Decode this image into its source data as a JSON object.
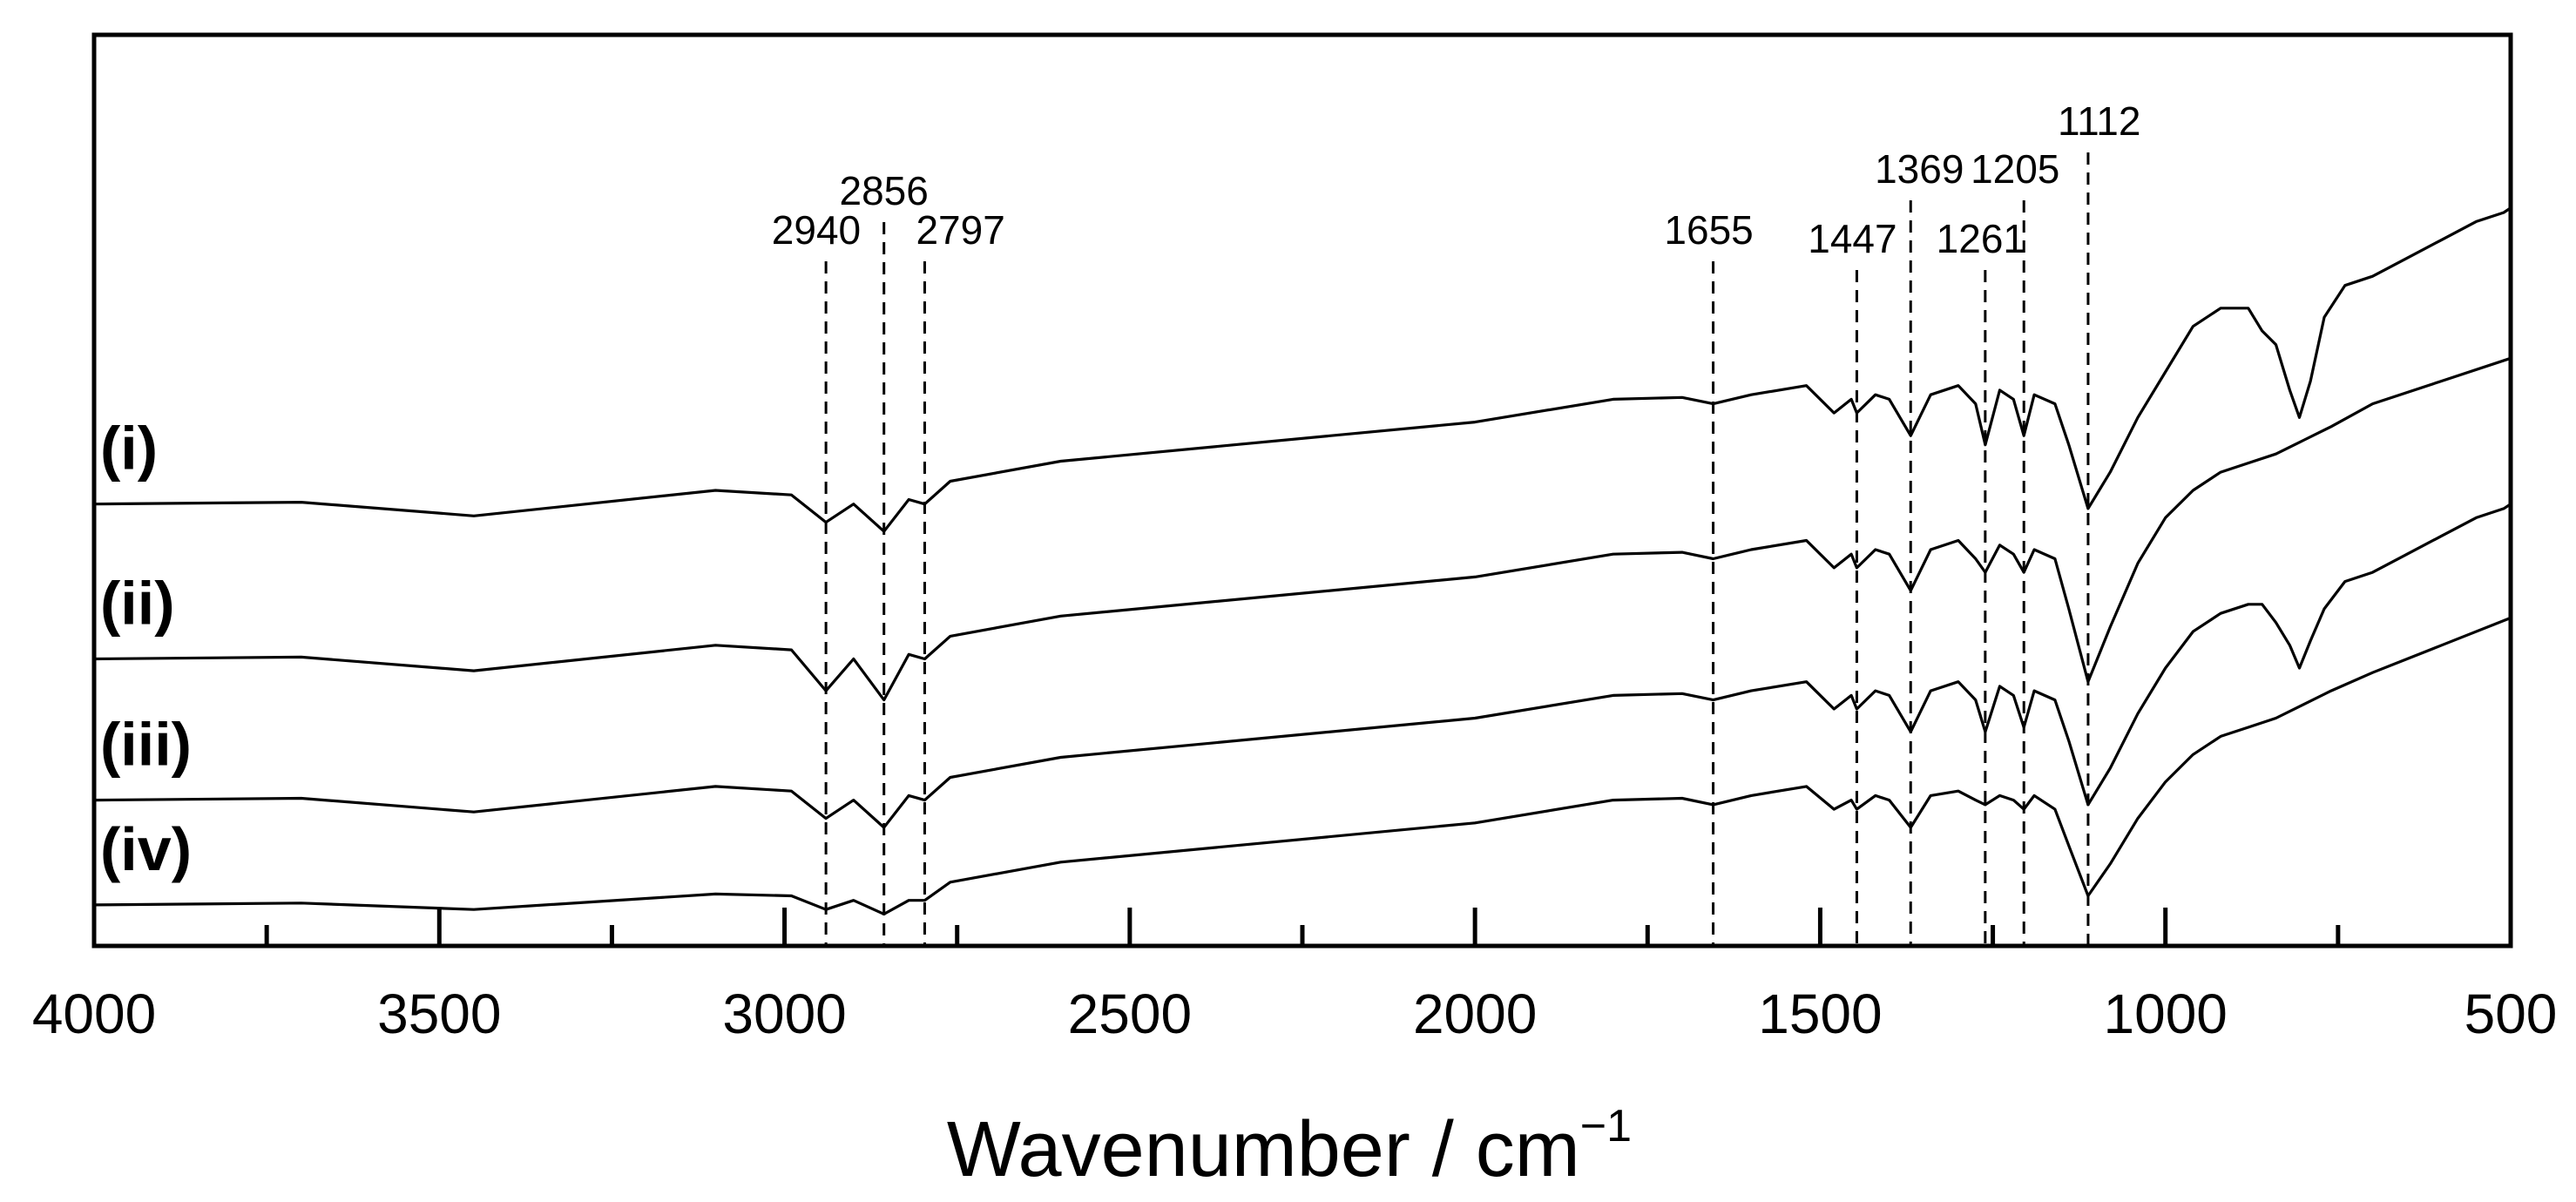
{
  "chart_data": {
    "type": "line",
    "title": "",
    "xlabel": "Wavenumber / cm",
    "xlabel_superscript": "−1",
    "ylabel": "",
    "xlim": [
      4000,
      500
    ],
    "x_reversed": true,
    "x_ticks_major": [
      "4000",
      "3500",
      "3000",
      "2500",
      "2000",
      "1500",
      "1000",
      "500"
    ],
    "x_ticks_minor": [
      3750,
      3250,
      2750,
      2250,
      1750,
      1250,
      750
    ],
    "y_ticks": [],
    "grid": false,
    "peak_markers": [
      {
        "wavenumber": 2940,
        "label": "2940"
      },
      {
        "wavenumber": 2856,
        "label": "2856"
      },
      {
        "wavenumber": 2797,
        "label": "2797"
      },
      {
        "wavenumber": 1655,
        "label": "1655"
      },
      {
        "wavenumber": 1447,
        "label": "1447"
      },
      {
        "wavenumber": 1369,
        "label": "1369"
      },
      {
        "wavenumber": 1261,
        "label": "1261"
      },
      {
        "wavenumber": 1205,
        "label": "1205"
      },
      {
        "wavenumber": 1112,
        "label": "1112"
      }
    ],
    "series": [
      {
        "name": "(i)",
        "offset": 0,
        "points": [
          [
            4000,
            0.515
          ],
          [
            3700,
            0.513
          ],
          [
            3450,
            0.528
          ],
          [
            3100,
            0.5
          ],
          [
            2990,
            0.505
          ],
          [
            2940,
            0.535
          ],
          [
            2900,
            0.515
          ],
          [
            2856,
            0.545
          ],
          [
            2820,
            0.51
          ],
          [
            2797,
            0.515
          ],
          [
            2760,
            0.49
          ],
          [
            2600,
            0.468
          ],
          [
            2000,
            0.425
          ],
          [
            1800,
            0.4
          ],
          [
            1700,
            0.398
          ],
          [
            1655,
            0.405
          ],
          [
            1600,
            0.395
          ],
          [
            1520,
            0.385
          ],
          [
            1480,
            0.415
          ],
          [
            1455,
            0.4
          ],
          [
            1447,
            0.415
          ],
          [
            1420,
            0.395
          ],
          [
            1400,
            0.4
          ],
          [
            1369,
            0.44
          ],
          [
            1340,
            0.395
          ],
          [
            1300,
            0.385
          ],
          [
            1275,
            0.405
          ],
          [
            1261,
            0.45
          ],
          [
            1240,
            0.39
          ],
          [
            1220,
            0.4
          ],
          [
            1205,
            0.44
          ],
          [
            1190,
            0.395
          ],
          [
            1160,
            0.405
          ],
          [
            1140,
            0.45
          ],
          [
            1112,
            0.52
          ],
          [
            1080,
            0.48
          ],
          [
            1040,
            0.42
          ],
          [
            1000,
            0.37
          ],
          [
            960,
            0.32
          ],
          [
            920,
            0.3
          ],
          [
            880,
            0.3
          ],
          [
            860,
            0.325
          ],
          [
            840,
            0.34
          ],
          [
            820,
            0.39
          ],
          [
            806,
            0.42
          ],
          [
            790,
            0.38
          ],
          [
            770,
            0.31
          ],
          [
            740,
            0.275
          ],
          [
            700,
            0.265
          ],
          [
            650,
            0.245
          ],
          [
            600,
            0.225
          ],
          [
            550,
            0.205
          ],
          [
            510,
            0.195
          ],
          [
            500,
            0.19
          ]
        ]
      },
      {
        "name": "(ii)",
        "offset": 0.17,
        "points": [
          [
            4000,
            0.515
          ],
          [
            3700,
            0.513
          ],
          [
            3450,
            0.528
          ],
          [
            3100,
            0.5
          ],
          [
            2990,
            0.505
          ],
          [
            2940,
            0.55
          ],
          [
            2900,
            0.515
          ],
          [
            2856,
            0.56
          ],
          [
            2820,
            0.51
          ],
          [
            2797,
            0.515
          ],
          [
            2760,
            0.49
          ],
          [
            2600,
            0.468
          ],
          [
            2000,
            0.425
          ],
          [
            1800,
            0.4
          ],
          [
            1700,
            0.398
          ],
          [
            1655,
            0.405
          ],
          [
            1600,
            0.395
          ],
          [
            1520,
            0.385
          ],
          [
            1480,
            0.415
          ],
          [
            1455,
            0.4
          ],
          [
            1447,
            0.415
          ],
          [
            1420,
            0.395
          ],
          [
            1400,
            0.4
          ],
          [
            1369,
            0.44
          ],
          [
            1340,
            0.395
          ],
          [
            1300,
            0.385
          ],
          [
            1275,
            0.405
          ],
          [
            1261,
            0.42
          ],
          [
            1240,
            0.39
          ],
          [
            1220,
            0.4
          ],
          [
            1205,
            0.42
          ],
          [
            1190,
            0.395
          ],
          [
            1160,
            0.405
          ],
          [
            1140,
            0.46
          ],
          [
            1112,
            0.54
          ],
          [
            1080,
            0.48
          ],
          [
            1040,
            0.41
          ],
          [
            1000,
            0.36
          ],
          [
            960,
            0.33
          ],
          [
            920,
            0.31
          ],
          [
            880,
            0.3
          ],
          [
            840,
            0.29
          ],
          [
            800,
            0.275
          ],
          [
            760,
            0.26
          ],
          [
            700,
            0.235
          ],
          [
            600,
            0.21
          ],
          [
            500,
            0.185
          ]
        ]
      },
      {
        "name": "(iii)",
        "offset": 0.325,
        "points": [
          [
            4000,
            0.515
          ],
          [
            3700,
            0.513
          ],
          [
            3450,
            0.528
          ],
          [
            3100,
            0.5
          ],
          [
            2990,
            0.505
          ],
          [
            2940,
            0.535
          ],
          [
            2900,
            0.515
          ],
          [
            2856,
            0.545
          ],
          [
            2820,
            0.51
          ],
          [
            2797,
            0.515
          ],
          [
            2760,
            0.49
          ],
          [
            2600,
            0.468
          ],
          [
            2000,
            0.425
          ],
          [
            1800,
            0.4
          ],
          [
            1700,
            0.398
          ],
          [
            1655,
            0.405
          ],
          [
            1600,
            0.395
          ],
          [
            1520,
            0.385
          ],
          [
            1480,
            0.415
          ],
          [
            1455,
            0.4
          ],
          [
            1447,
            0.415
          ],
          [
            1420,
            0.395
          ],
          [
            1400,
            0.4
          ],
          [
            1369,
            0.44
          ],
          [
            1340,
            0.395
          ],
          [
            1300,
            0.385
          ],
          [
            1275,
            0.405
          ],
          [
            1261,
            0.44
          ],
          [
            1240,
            0.39
          ],
          [
            1220,
            0.4
          ],
          [
            1205,
            0.435
          ],
          [
            1190,
            0.395
          ],
          [
            1160,
            0.405
          ],
          [
            1140,
            0.45
          ],
          [
            1112,
            0.52
          ],
          [
            1080,
            0.48
          ],
          [
            1040,
            0.42
          ],
          [
            1000,
            0.37
          ],
          [
            960,
            0.33
          ],
          [
            920,
            0.31
          ],
          [
            880,
            0.3
          ],
          [
            860,
            0.3
          ],
          [
            840,
            0.32
          ],
          [
            820,
            0.345
          ],
          [
            806,
            0.37
          ],
          [
            790,
            0.34
          ],
          [
            770,
            0.305
          ],
          [
            740,
            0.275
          ],
          [
            700,
            0.265
          ],
          [
            650,
            0.245
          ],
          [
            600,
            0.225
          ],
          [
            550,
            0.205
          ],
          [
            510,
            0.195
          ],
          [
            500,
            0.19
          ]
        ]
      },
      {
        "name": "(iv)",
        "offset": 0.44,
        "points": [
          [
            4000,
            0.515
          ],
          [
            3700,
            0.513
          ],
          [
            3450,
            0.52
          ],
          [
            3100,
            0.503
          ],
          [
            2990,
            0.505
          ],
          [
            2940,
            0.52
          ],
          [
            2900,
            0.51
          ],
          [
            2856,
            0.525
          ],
          [
            2820,
            0.51
          ],
          [
            2797,
            0.51
          ],
          [
            2760,
            0.49
          ],
          [
            2600,
            0.468
          ],
          [
            2000,
            0.425
          ],
          [
            1800,
            0.4
          ],
          [
            1700,
            0.398
          ],
          [
            1655,
            0.405
          ],
          [
            1600,
            0.395
          ],
          [
            1520,
            0.385
          ],
          [
            1480,
            0.41
          ],
          [
            1455,
            0.4
          ],
          [
            1447,
            0.41
          ],
          [
            1420,
            0.395
          ],
          [
            1400,
            0.4
          ],
          [
            1369,
            0.43
          ],
          [
            1340,
            0.395
          ],
          [
            1300,
            0.39
          ],
          [
            1275,
            0.4
          ],
          [
            1261,
            0.405
          ],
          [
            1240,
            0.395
          ],
          [
            1220,
            0.4
          ],
          [
            1205,
            0.41
          ],
          [
            1190,
            0.395
          ],
          [
            1160,
            0.41
          ],
          [
            1140,
            0.45
          ],
          [
            1112,
            0.505
          ],
          [
            1080,
            0.47
          ],
          [
            1040,
            0.42
          ],
          [
            1000,
            0.38
          ],
          [
            960,
            0.35
          ],
          [
            920,
            0.33
          ],
          [
            880,
            0.32
          ],
          [
            840,
            0.31
          ],
          [
            800,
            0.295
          ],
          [
            760,
            0.28
          ],
          [
            700,
            0.26
          ],
          [
            600,
            0.23
          ],
          [
            500,
            0.2
          ]
        ]
      }
    ]
  }
}
